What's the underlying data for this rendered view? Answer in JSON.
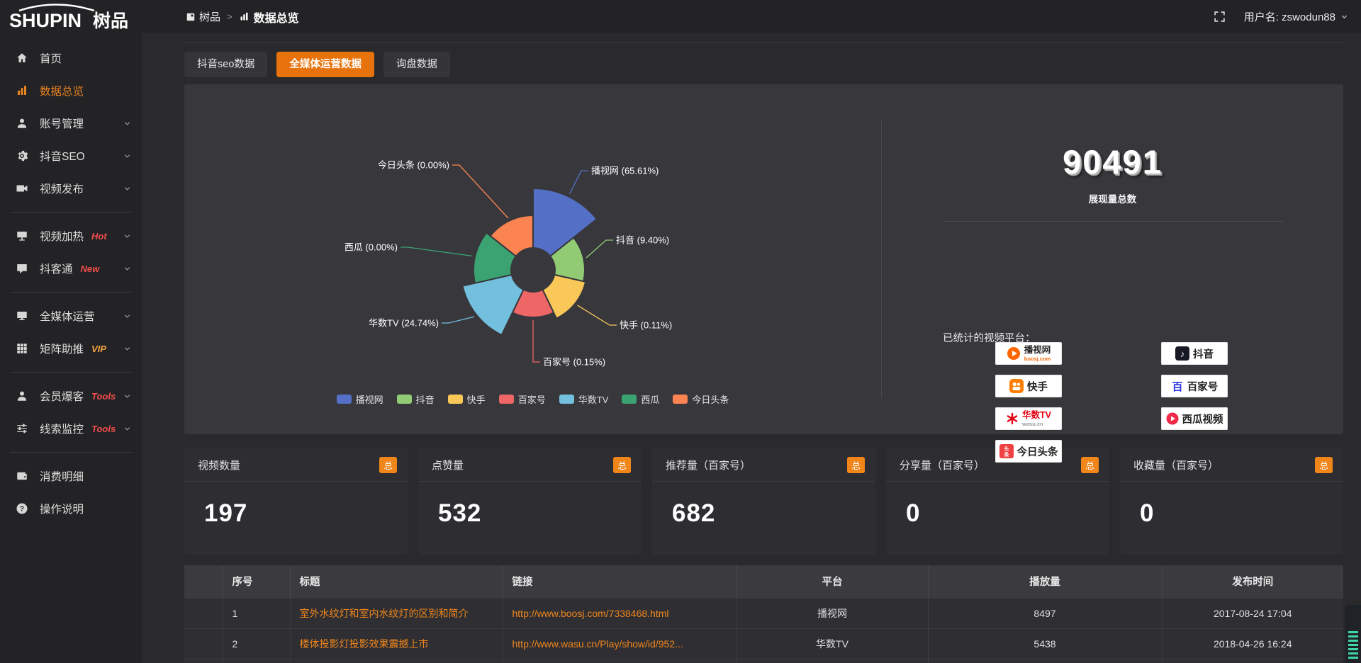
{
  "topbar": {
    "logo_main": "SHUPIN",
    "logo_cn": "树品",
    "breadcrumb_root": "树品",
    "breadcrumb_sep": ">",
    "breadcrumb_current": "数据总览",
    "user_label": "用户名: zswodun88"
  },
  "sidebar": {
    "items": [
      {
        "label": "首页",
        "icon": "home",
        "active": false,
        "chevron": false,
        "badge": "",
        "badge_color": "",
        "divider_after": false
      },
      {
        "label": "数据总览",
        "icon": "bar-chart",
        "active": true,
        "chevron": false,
        "badge": "",
        "badge_color": "",
        "divider_after": false
      },
      {
        "label": "账号管理",
        "icon": "user",
        "active": false,
        "chevron": true,
        "badge": "",
        "badge_color": "",
        "divider_after": false
      },
      {
        "label": "抖音SEO",
        "icon": "gear",
        "active": false,
        "chevron": true,
        "badge": "",
        "badge_color": "",
        "divider_after": false
      },
      {
        "label": "视频发布",
        "icon": "video",
        "active": false,
        "chevron": true,
        "badge": "",
        "badge_color": "",
        "divider_after": true
      },
      {
        "label": "视频加热",
        "icon": "screen",
        "active": false,
        "chevron": true,
        "badge": "Hot",
        "badge_color": "#f24c4c",
        "divider_after": false
      },
      {
        "label": "抖客通",
        "icon": "comment",
        "active": false,
        "chevron": true,
        "badge": "New",
        "badge_color": "#f24c4c",
        "divider_after": true
      },
      {
        "label": "全媒体运营",
        "icon": "monitor",
        "active": false,
        "chevron": true,
        "badge": "",
        "badge_color": "",
        "divider_after": false
      },
      {
        "label": "矩阵助推",
        "icon": "grid",
        "active": false,
        "chevron": true,
        "badge": "VIP",
        "badge_color": "#f2a33c",
        "divider_after": true
      },
      {
        "label": "会员爆客",
        "icon": "user",
        "active": false,
        "chevron": true,
        "badge": "Tools",
        "badge_color": "#f24c4c",
        "divider_after": false
      },
      {
        "label": "线索监控",
        "icon": "sliders",
        "active": false,
        "chevron": true,
        "badge": "Tools",
        "badge_color": "#f24c4c",
        "divider_after": true
      },
      {
        "label": "消费明细",
        "icon": "wallet",
        "active": false,
        "chevron": false,
        "badge": "",
        "badge_color": "",
        "divider_after": false
      },
      {
        "label": "操作说明",
        "icon": "question",
        "active": false,
        "chevron": false,
        "badge": "",
        "badge_color": "",
        "divider_after": false
      }
    ]
  },
  "tabs": [
    {
      "label": "抖音seo数据",
      "active": false
    },
    {
      "label": "全媒体运营数据",
      "active": true
    },
    {
      "label": "询盘数据",
      "active": false
    }
  ],
  "chart_data": {
    "type": "pie",
    "subtype": "nightingale-rose",
    "inner_radius": 31,
    "legend_position": "bottom-center",
    "items": [
      {
        "name": "播视网",
        "pct": 65.61,
        "label": "播视网 (65.61%)",
        "color": "#5470c6",
        "display_radius": 115
      },
      {
        "name": "抖音",
        "pct": 9.4,
        "label": "抖音 (9.40%)",
        "color": "#91cc75",
        "display_radius": 73
      },
      {
        "name": "快手",
        "pct": 0.11,
        "label": "快手 (0.11%)",
        "color": "#fac858",
        "display_radius": 76
      },
      {
        "name": "百家号",
        "pct": 0.15,
        "label": "百家号 (0.15%)",
        "color": "#ee6666",
        "display_radius": 67
      },
      {
        "name": "华数TV",
        "pct": 24.74,
        "label": "华数TV (24.74%)",
        "color": "#73c0de",
        "display_radius": 102
      },
      {
        "name": "西瓜",
        "pct": 0.0,
        "label": "西瓜 (0.00%)",
        "color": "#3ba272",
        "display_radius": 84
      },
      {
        "name": "今日头条",
        "pct": 0.0,
        "label": "今日头条 (0.00%)",
        "color": "#fc8452",
        "display_radius": 77
      }
    ],
    "legend": [
      "播视网",
      "抖音",
      "快手",
      "百家号",
      "华数TV",
      "西瓜",
      "今日头条"
    ]
  },
  "summary": {
    "total_value": "90491",
    "total_label": "展现量总数",
    "platforms_title": "已统计的视频平台：",
    "platform_columns": {
      "left": [
        {
          "name": "播视网",
          "sub": "boosj.com",
          "logo": "boosj"
        },
        {
          "name": "快手",
          "sub": "",
          "logo": "kuaishou"
        },
        {
          "name": "华数TV",
          "sub": "wasu.cn",
          "logo": "wasu"
        },
        {
          "name": "今日头条",
          "sub": "",
          "logo": "toutiao"
        }
      ],
      "right": [
        {
          "name": "抖音",
          "sub": "",
          "logo": "douyin"
        },
        {
          "name": "百家号",
          "sub": "",
          "logo": "baijiahao"
        },
        {
          "name": "西瓜视频",
          "sub": "",
          "logo": "xigua"
        }
      ]
    }
  },
  "stat_cards": [
    {
      "label": "视频数量",
      "badge": "总",
      "value": "197"
    },
    {
      "label": "点赞量",
      "badge": "总",
      "value": "532"
    },
    {
      "label": "推荐量（百家号）",
      "badge": "总",
      "value": "682"
    },
    {
      "label": "分享量（百家号）",
      "badge": "总",
      "value": "0"
    },
    {
      "label": "收藏量（百家号）",
      "badge": "总",
      "value": "0"
    }
  ],
  "table": {
    "headers": [
      "序号",
      "标题",
      "链接",
      "平台",
      "播放量",
      "发布时间"
    ],
    "rows": [
      {
        "no": "1",
        "title": "室外水纹灯和室内水纹灯的区别和简介",
        "link": "http://www.boosj.com/7338468.html",
        "platform": "播视网",
        "plays": "8497",
        "date": "2017-08-24 17:04"
      },
      {
        "no": "2",
        "title": "楼体投影灯投影效果震撼上市",
        "link": "http://www.wasu.cn/Play/show/id/952...",
        "platform": "华数TV",
        "plays": "5438",
        "date": "2018-04-26 16:24"
      },
      {
        "no": "",
        "title": "",
        "link": "",
        "platform": "",
        "plays": "",
        "date": ""
      }
    ]
  },
  "colors": {
    "accent": "#ee8420",
    "tab_active": "#e8730d",
    "link": "#f0861c",
    "badge_orange": "#f08519"
  }
}
